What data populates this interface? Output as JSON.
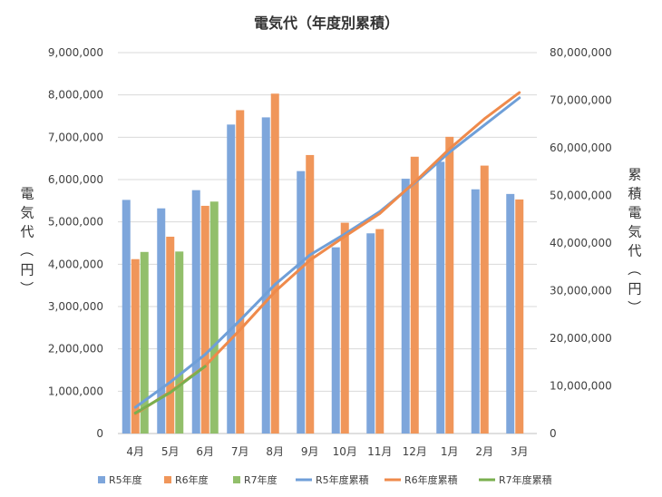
{
  "chart_data": {
    "type": "bar",
    "title": "電気代（年度別累積）",
    "ylabel": "電気代（円）",
    "y2label": "累積電気代（円）",
    "categories": [
      "4月",
      "5月",
      "6月",
      "7月",
      "8月",
      "9月",
      "10月",
      "11月",
      "12月",
      "1月",
      "2月",
      "3月"
    ],
    "ylim": [
      0,
      9000000
    ],
    "y2lim": [
      0,
      80000000
    ],
    "y_ticks": [
      "0",
      "1,000,000",
      "2,000,000",
      "3,000,000",
      "4,000,000",
      "5,000,000",
      "6,000,000",
      "7,000,000",
      "8,000,000",
      "9,000,000"
    ],
    "y2_ticks": [
      "0",
      "10,000,000",
      "20,000,000",
      "30,000,000",
      "40,000,000",
      "50,000,000",
      "60,000,000",
      "70,000,000",
      "80,000,000"
    ],
    "grid": true,
    "legend_position": "bottom",
    "bar_series": [
      {
        "name": "R5年度",
        "color": "#7ea6db",
        "values": [
          5520000,
          5320000,
          5750000,
          7300000,
          7470000,
          6200000,
          4400000,
          4730000,
          6020000,
          6420000,
          5770000,
          5660000
        ]
      },
      {
        "name": "R6年度",
        "color": "#f0965a",
        "values": [
          4120000,
          4650000,
          5380000,
          7640000,
          8030000,
          6580000,
          4980000,
          4830000,
          6540000,
          7010000,
          6330000,
          5530000
        ]
      },
      {
        "name": "R7年度",
        "color": "#92bf6b",
        "values": [
          4290000,
          4300000,
          5480000
        ]
      }
    ],
    "line_series": [
      {
        "name": "R5年度累積",
        "color": "#6f9fd8",
        "values": [
          5500000,
          10800000,
          16600000,
          23800000,
          31300000,
          37500000,
          41900000,
          46600000,
          52600000,
          59100000,
          64800000,
          70500000
        ]
      },
      {
        "name": "R6年度累積",
        "color": "#ef8a4b",
        "values": [
          4100000,
          8800000,
          14200000,
          21800000,
          29800000,
          36400000,
          41400000,
          46200000,
          52800000,
          59800000,
          66100000,
          71600000
        ]
      },
      {
        "name": "R7年度累積",
        "color": "#7aaf4e",
        "values": [
          4300000,
          8600000,
          14100000
        ]
      }
    ]
  }
}
